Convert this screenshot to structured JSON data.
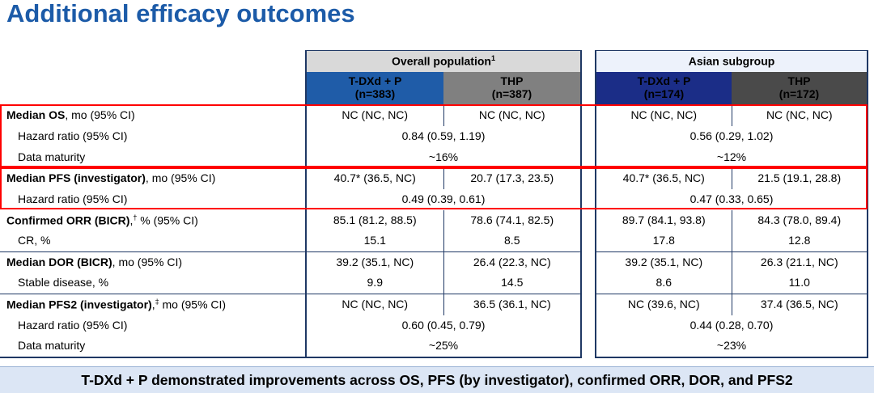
{
  "title": "Additional efficacy outcomes",
  "colors": {
    "title_blue": "#1c5ba8",
    "navy_border": "#1f3864",
    "red_highlight": "#ff0000",
    "overall_group_header_bg": "#d9d9d9",
    "overall_group_header_text": "#595959",
    "asian_group_header_bg": "#edf2fb",
    "asian_group_header_text": "#1b35a8",
    "overall_tdxd_bg": "#1f5ca8",
    "overall_thp_bg": "#808080",
    "asian_tdxd_bg": "#1b2d87",
    "asian_thp_bg": "#4a4a4a",
    "banner_bg": "#dce6f5"
  },
  "table": {
    "groups": [
      {
        "id": "overall",
        "title": "Overall population",
        "title_sup": "1",
        "arms": [
          {
            "name": "T-DXd + P",
            "n": "(n=383)"
          },
          {
            "name": "THP",
            "n": "(n=387)"
          }
        ]
      },
      {
        "id": "asian",
        "title": "Asian subgroup",
        "title_sup": "",
        "arms": [
          {
            "name": "T-DXd + P",
            "n": "(n=174)"
          },
          {
            "name": "THP",
            "n": "(n=172)"
          }
        ]
      }
    ],
    "rows": [
      {
        "label": [
          {
            "t": "Median OS",
            "b": 1
          },
          {
            "t": ", mo (95% CI)"
          }
        ],
        "indent": false,
        "span": false,
        "overall": [
          "NC (NC, NC)",
          "NC (NC, NC)"
        ],
        "asian": [
          "NC (NC, NC)",
          "NC (NC, NC)"
        ]
      },
      {
        "label": [
          {
            "t": "Hazard ratio (95% CI)"
          }
        ],
        "indent": true,
        "span": true,
        "overall": [
          "0.84 (0.59, 1.19)"
        ],
        "asian": [
          "0.56 (0.29, 1.02)"
        ]
      },
      {
        "label": [
          {
            "t": "Data maturity"
          }
        ],
        "indent": true,
        "span": true,
        "overall": [
          "~16%"
        ],
        "asian": [
          "~12%"
        ]
      },
      {
        "label": [
          {
            "t": "Median PFS (investigator)",
            "b": 1
          },
          {
            "t": ", mo (95% CI)"
          }
        ],
        "indent": false,
        "span": false,
        "overall": [
          "40.7* (36.5, NC)",
          "20.7 (17.3, 23.5)"
        ],
        "asian": [
          "40.7* (36.5, NC)",
          "21.5 (19.1, 28.8)"
        ]
      },
      {
        "label": [
          {
            "t": "Hazard ratio (95% CI)"
          }
        ],
        "indent": true,
        "span": true,
        "overall": [
          "0.49 (0.39, 0.61)"
        ],
        "asian": [
          "0.47 (0.33, 0.65)"
        ]
      },
      {
        "label": [
          {
            "t": "Confirmed ORR (BICR)",
            "b": 1
          },
          {
            "t": ","
          },
          {
            "t": "†",
            "s": 1
          },
          {
            "t": " % (95% CI)"
          }
        ],
        "indent": false,
        "span": false,
        "overall": [
          "85.1 (81.2, 88.5)",
          "78.6 (74.1, 82.5)"
        ],
        "asian": [
          "89.7 (84.1, 93.8)",
          "84.3 (78.0, 89.4)"
        ]
      },
      {
        "label": [
          {
            "t": "CR, %"
          }
        ],
        "indent": true,
        "span": false,
        "sep_after": true,
        "overall": [
          "15.1",
          "8.5"
        ],
        "asian": [
          "17.8",
          "12.8"
        ]
      },
      {
        "label": [
          {
            "t": "Median DOR (BICR)",
            "b": 1
          },
          {
            "t": ", mo (95% CI)"
          }
        ],
        "indent": false,
        "span": false,
        "overall": [
          "39.2 (35.1, NC)",
          "26.4 (22.3, NC)"
        ],
        "asian": [
          "39.2 (35.1, NC)",
          "26.3 (21.1, NC)"
        ]
      },
      {
        "label": [
          {
            "t": "Stable disease, %"
          }
        ],
        "indent": true,
        "span": false,
        "sep_after": true,
        "overall": [
          "9.9",
          "14.5"
        ],
        "asian": [
          "8.6",
          "11.0"
        ]
      },
      {
        "label": [
          {
            "t": "Median PFS2 (investigator)",
            "b": 1
          },
          {
            "t": ","
          },
          {
            "t": "‡",
            "s": 1
          },
          {
            "t": " mo (95% CI)"
          }
        ],
        "indent": false,
        "span": false,
        "overall": [
          "NC (NC, NC)",
          "36.5 (36.1, NC)"
        ],
        "asian": [
          "NC (39.6, NC)",
          "37.4 (36.5, NC)"
        ]
      },
      {
        "label": [
          {
            "t": "Hazard ratio (95% CI)"
          }
        ],
        "indent": true,
        "span": true,
        "overall": [
          "0.60 (0.45, 0.79)"
        ],
        "asian": [
          "0.44 (0.28, 0.70)"
        ]
      },
      {
        "label": [
          {
            "t": "Data maturity"
          }
        ],
        "indent": true,
        "span": true,
        "overall": [
          "~25%"
        ],
        "asian": [
          "~23%"
        ]
      }
    ]
  },
  "banner": {
    "text": "T-DXd + P demonstrated improvements across OS, PFS (by investigator), confirmed ORR, DOR, and PFS2"
  }
}
